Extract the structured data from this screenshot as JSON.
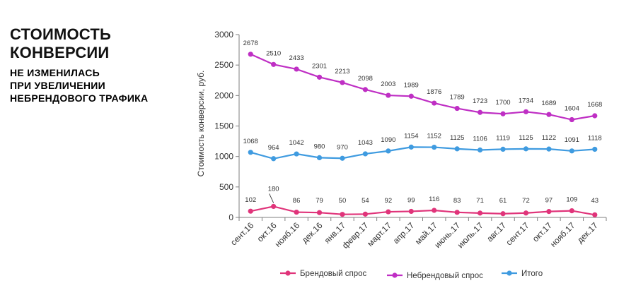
{
  "heading": {
    "title_line1": "СТОИМОСТЬ",
    "title_line2": "КОНВЕРСИИ",
    "subtitle_line1": "НЕ ИЗМЕНИЛАСЬ",
    "subtitle_line2": "ПРИ УВЕЛИЧЕНИИ",
    "subtitle_line3": "НЕБРЕНДОВОГО ТРАФИКА"
  },
  "colors": {
    "accent": "#c83bc8",
    "brand": "#e0347a",
    "nonbrand": "#bf2fc4",
    "total": "#3f9be0",
    "axis": "#7f7f7f"
  },
  "chart_data": {
    "type": "line",
    "ylabel": "Стоимость конверсии, руб.",
    "xlabel": "",
    "ylim": [
      0,
      3000
    ],
    "yticks": [
      "0",
      "500",
      "1000",
      "1500",
      "2000",
      "2500",
      "3000"
    ],
    "categories": [
      "сент.16",
      "окт.16",
      "нояб.16",
      "дек.16",
      "янв.17",
      "февр.17",
      "март.17",
      "апр.17",
      "май.17",
      "июнь.17",
      "июль.17",
      "авг.17",
      "сент.17",
      "окт.17",
      "нояб.17",
      "дек.17"
    ],
    "grid": false,
    "legend_position": "bottom",
    "series": [
      {
        "name": "Брендовый спрос",
        "color": "#e0347a",
        "values": [
          102,
          180,
          86,
          79,
          50,
          54,
          92,
          99,
          116,
          83,
          71,
          61,
          72,
          97,
          109,
          43
        ],
        "labels": [
          "102",
          "180",
          "86",
          "79",
          "50",
          "54",
          "92",
          "99",
          "116",
          "83",
          "71",
          "61",
          "72",
          "97",
          "109",
          "43"
        ]
      },
      {
        "name": "Небрендовый спрос",
        "color": "#bf2fc4",
        "values": [
          2678,
          2510,
          2433,
          2301,
          2213,
          2098,
          2003,
          1989,
          1876,
          1789,
          1723,
          1700,
          1734,
          1689,
          1604,
          1668
        ],
        "labels": [
          "2678",
          "2510",
          "2433",
          "2301",
          "2213",
          "2098",
          "2003",
          "1989",
          "1876",
          "1789",
          "1723",
          "1700",
          "1734",
          "1689",
          "1604",
          "1668"
        ]
      },
      {
        "name": "Итого",
        "color": "#3f9be0",
        "values": [
          1068,
          964,
          1042,
          980,
          970,
          1043,
          1090,
          1154,
          1152,
          1125,
          1106,
          1119,
          1125,
          1122,
          1091,
          1118
        ],
        "labels": [
          "1068",
          "964",
          "1042",
          "980",
          "970",
          "1043",
          "1090",
          "1154",
          "1152",
          "1125",
          "1106",
          "1119",
          "1125",
          "1122",
          "1091",
          "1118"
        ]
      }
    ]
  }
}
